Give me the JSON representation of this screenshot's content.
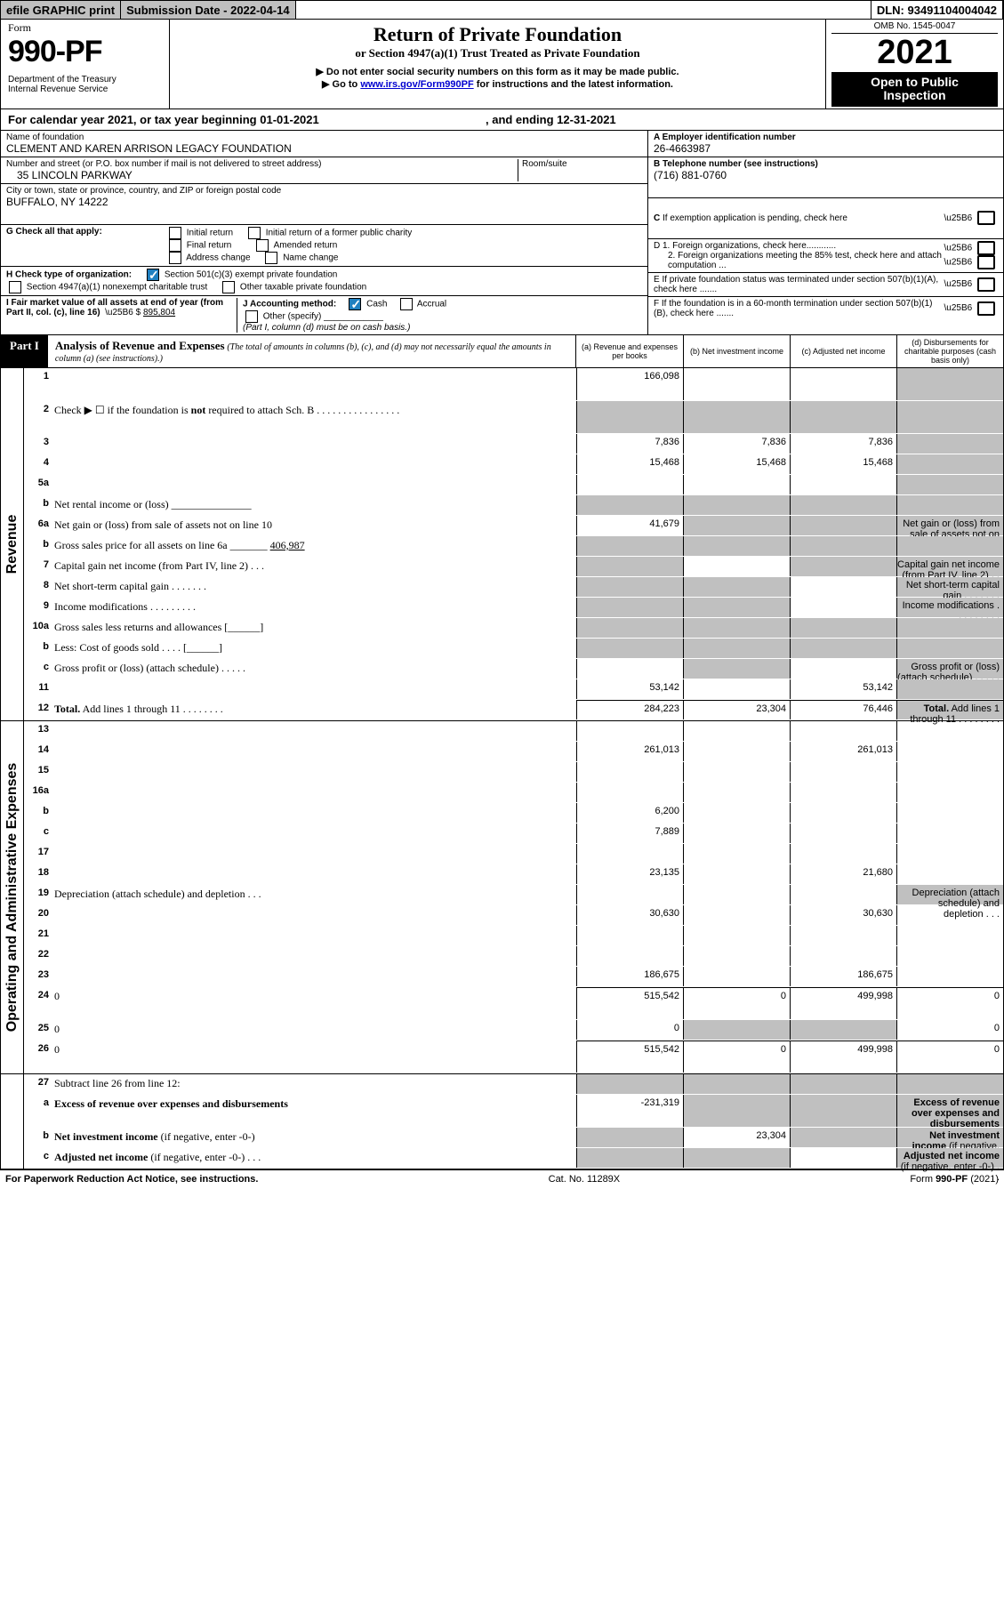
{
  "top": {
    "efile": "efile GRAPHIC print",
    "submission": "Submission Date - 2022-04-14",
    "dln": "DLN: 93491104004042"
  },
  "header": {
    "form_label": "Form",
    "form_num": "990-PF",
    "dept1": "Department of the Treasury",
    "dept2": "Internal Revenue Service",
    "title": "Return of Private Foundation",
    "subtitle": "or Section 4947(a)(1) Trust Treated as Private Foundation",
    "note1": "▶ Do not enter social security numbers on this form as it may be made public.",
    "note2_pre": "▶ Go to ",
    "note2_link": "www.irs.gov/Form990PF",
    "note2_post": " for instructions and the latest information.",
    "omb": "OMB No. 1545-0047",
    "year": "2021",
    "open_pub1": "Open to Public",
    "open_pub2": "Inspection"
  },
  "calyear": {
    "pre": "For calendar year 2021, or tax year beginning ",
    "begin": "01-01-2021",
    "mid": " , and ending ",
    "end": "12-31-2021"
  },
  "entity": {
    "name_label": "Name of foundation",
    "name": "CLEMENT AND KAREN ARRISON LEGACY FOUNDATION",
    "street_label": "Number and street (or P.O. box number if mail is not delivered to street address)",
    "street": "35 LINCOLN PARKWAY",
    "room_label": "Room/suite",
    "city_label": "City or town, state or province, country, and ZIP or foreign postal code",
    "city": "BUFFALO, NY  14222",
    "ein_label": "A Employer identification number",
    "ein": "26-4663987",
    "tel_label": "B Telephone number (see instructions)",
    "tel": "(716) 881-0760",
    "c_label": "C If exemption application is pending, check here",
    "d1": "D 1. Foreign organizations, check here............",
    "d2": "2. Foreign organizations meeting the 85% test, check here and attach computation ...",
    "e_label": "E  If private foundation status was terminated under section 507(b)(1)(A), check here .......",
    "f_label": "F  If the foundation is in a 60-month termination under section 507(b)(1)(B), check here .......",
    "g_label": "G Check all that apply:",
    "g_initial": "Initial return",
    "g_initial_former": "Initial return of a former public charity",
    "g_final": "Final return",
    "g_amended": "Amended return",
    "g_address": "Address change",
    "g_name": "Name change",
    "h_label": "H Check type of organization:",
    "h_501c3": "Section 501(c)(3) exempt private foundation",
    "h_4947": "Section 4947(a)(1) nonexempt charitable trust",
    "h_other_tax": "Other taxable private foundation",
    "i_label": "I Fair market value of all assets at end of year (from Part II, col. (c), line 16)",
    "i_val": "895,804",
    "j_label": "J Accounting method:",
    "j_cash": "Cash",
    "j_accrual": "Accrual",
    "j_other": "Other (specify)",
    "j_note": "(Part I, column (d) must be on cash basis.)"
  },
  "part1": {
    "tab": "Part I",
    "title": "Analysis of Revenue and Expenses",
    "title_note": "(The total of amounts in columns (b), (c), and (d) may not necessarily equal the amounts in column (a) (see instructions).)",
    "col_a": "(a)   Revenue and expenses per books",
    "col_b": "(b)   Net investment income",
    "col_c": "(c)   Adjusted net income",
    "col_d": "(d)   Disbursements for charitable purposes (cash basis only)"
  },
  "rows": [
    {
      "n": "1",
      "d": "",
      "a": "166,098",
      "b": "",
      "c": "",
      "tall": true,
      "shade_d": true
    },
    {
      "n": "2",
      "d": "Check ▶ ☐ if the foundation is <b>not</b> required to attach Sch. B  .  .  .  .  .  .  .  .  .  .  .  .  .  .  .  .",
      "shade_all": true,
      "tall": true
    },
    {
      "n": "3",
      "d": "",
      "a": "7,836",
      "b": "7,836",
      "c": "7,836",
      "shade_d": true
    },
    {
      "n": "4",
      "d": "",
      "a": "15,468",
      "b": "15,468",
      "c": "15,468",
      "shade_d": true
    },
    {
      "n": "5a",
      "d": "",
      "a": "",
      "b": "",
      "c": "",
      "shade_d": true
    },
    {
      "n": "b",
      "d": "Net rental income or (loss)  _______________",
      "shade_all": true
    },
    {
      "n": "6a",
      "d": "Net gain or (loss) from sale of assets not on line 10",
      "a": "41,679",
      "shade_bcd": true
    },
    {
      "n": "b",
      "d": "Gross sales price for all assets on line 6a _______ <u>406,987</u>",
      "shade_all": true
    },
    {
      "n": "7",
      "d": "Capital gain net income (from Part IV, line 2)  .   .   .",
      "shade_a": true,
      "b": "",
      "shade_cd": true
    },
    {
      "n": "8",
      "d": "Net short-term capital gain  .   .   .   .   .   .   .",
      "shade_ab": true,
      "c": "",
      "shade_d": true
    },
    {
      "n": "9",
      "d": "Income modifications  .   .   .   .   .   .   .   .   .",
      "shade_ab": true,
      "c": "",
      "shade_d": true
    },
    {
      "n": "10a",
      "d": "Gross sales less returns and allowances  [______]",
      "shade_all": true
    },
    {
      "n": "b",
      "d": "Less: Cost of goods sold   .   .   .   .   [______]",
      "shade_all": true
    },
    {
      "n": "c",
      "d": "Gross profit or (loss) (attach schedule)   .   .   .   .   .",
      "a": "",
      "shade_b": true,
      "c": "",
      "shade_d": true
    },
    {
      "n": "11",
      "d": "",
      "a": "53,142",
      "b": "",
      "c": "53,142",
      "shade_d": true
    },
    {
      "n": "12",
      "d": "<b>Total.</b> Add lines 1 through 11  .   .   .   .   .   .   .   .",
      "a": "284,223",
      "b": "23,304",
      "c": "76,446",
      "shade_d": true,
      "tb": true
    }
  ],
  "exp_rows": [
    {
      "n": "13",
      "d": "",
      "a": "",
      "b": "",
      "c": ""
    },
    {
      "n": "14",
      "d": "",
      "a": "261,013",
      "b": "",
      "c": "261,013"
    },
    {
      "n": "15",
      "d": "",
      "a": "",
      "b": "",
      "c": ""
    },
    {
      "n": "16a",
      "d": "",
      "a": "",
      "b": "",
      "c": ""
    },
    {
      "n": "b",
      "d": "",
      "a": "6,200",
      "b": "",
      "c": ""
    },
    {
      "n": "c",
      "d": "",
      "a": "7,889",
      "b": "",
      "c": ""
    },
    {
      "n": "17",
      "d": "",
      "a": "",
      "b": "",
      "c": ""
    },
    {
      "n": "18",
      "d": "",
      "a": "23,135",
      "b": "",
      "c": "21,680"
    },
    {
      "n": "19",
      "d": "Depreciation (attach schedule) and depletion   .   .   .",
      "a": "",
      "b": "",
      "c": "",
      "shade_d": true
    },
    {
      "n": "20",
      "d": "",
      "a": "30,630",
      "b": "",
      "c": "30,630"
    },
    {
      "n": "21",
      "d": "",
      "a": "",
      "b": "",
      "c": ""
    },
    {
      "n": "22",
      "d": "",
      "a": "",
      "b": "",
      "c": ""
    },
    {
      "n": "23",
      "d": "",
      "a": "186,675",
      "b": "",
      "c": "186,675"
    },
    {
      "n": "24",
      "d": "0",
      "a": "515,542",
      "b": "0",
      "c": "499,998",
      "tall": true,
      "tb": true
    },
    {
      "n": "25",
      "d": "0",
      "a": "0",
      "shade_b": true,
      "shade_c": true
    },
    {
      "n": "26",
      "d": "0",
      "a": "515,542",
      "b": "0",
      "c": "499,998",
      "tall": true,
      "tb": true
    }
  ],
  "net_rows": [
    {
      "n": "27",
      "d": "Subtract line 26 from line 12:",
      "shade_all": true
    },
    {
      "n": "a",
      "d": "<b>Excess of revenue over expenses and disbursements</b>",
      "a": "-231,319",
      "shade_bcd": true,
      "tall": true
    },
    {
      "n": "b",
      "d": "<b>Net investment income</b> (if negative, enter -0-)",
      "shade_a": true,
      "b": "23,304",
      "shade_cd": true
    },
    {
      "n": "c",
      "d": "<b>Adjusted net income</b> (if negative, enter -0-)  .   .   .",
      "shade_ab": true,
      "c": "",
      "shade_d": true
    }
  ],
  "footer": {
    "left": "For Paperwork Reduction Act Notice, see instructions.",
    "mid": "Cat. No. 11289X",
    "right": "Form 990-PF (2021)"
  },
  "vlabels": {
    "rev": "Revenue",
    "exp": "Operating and Administrative Expenses"
  }
}
